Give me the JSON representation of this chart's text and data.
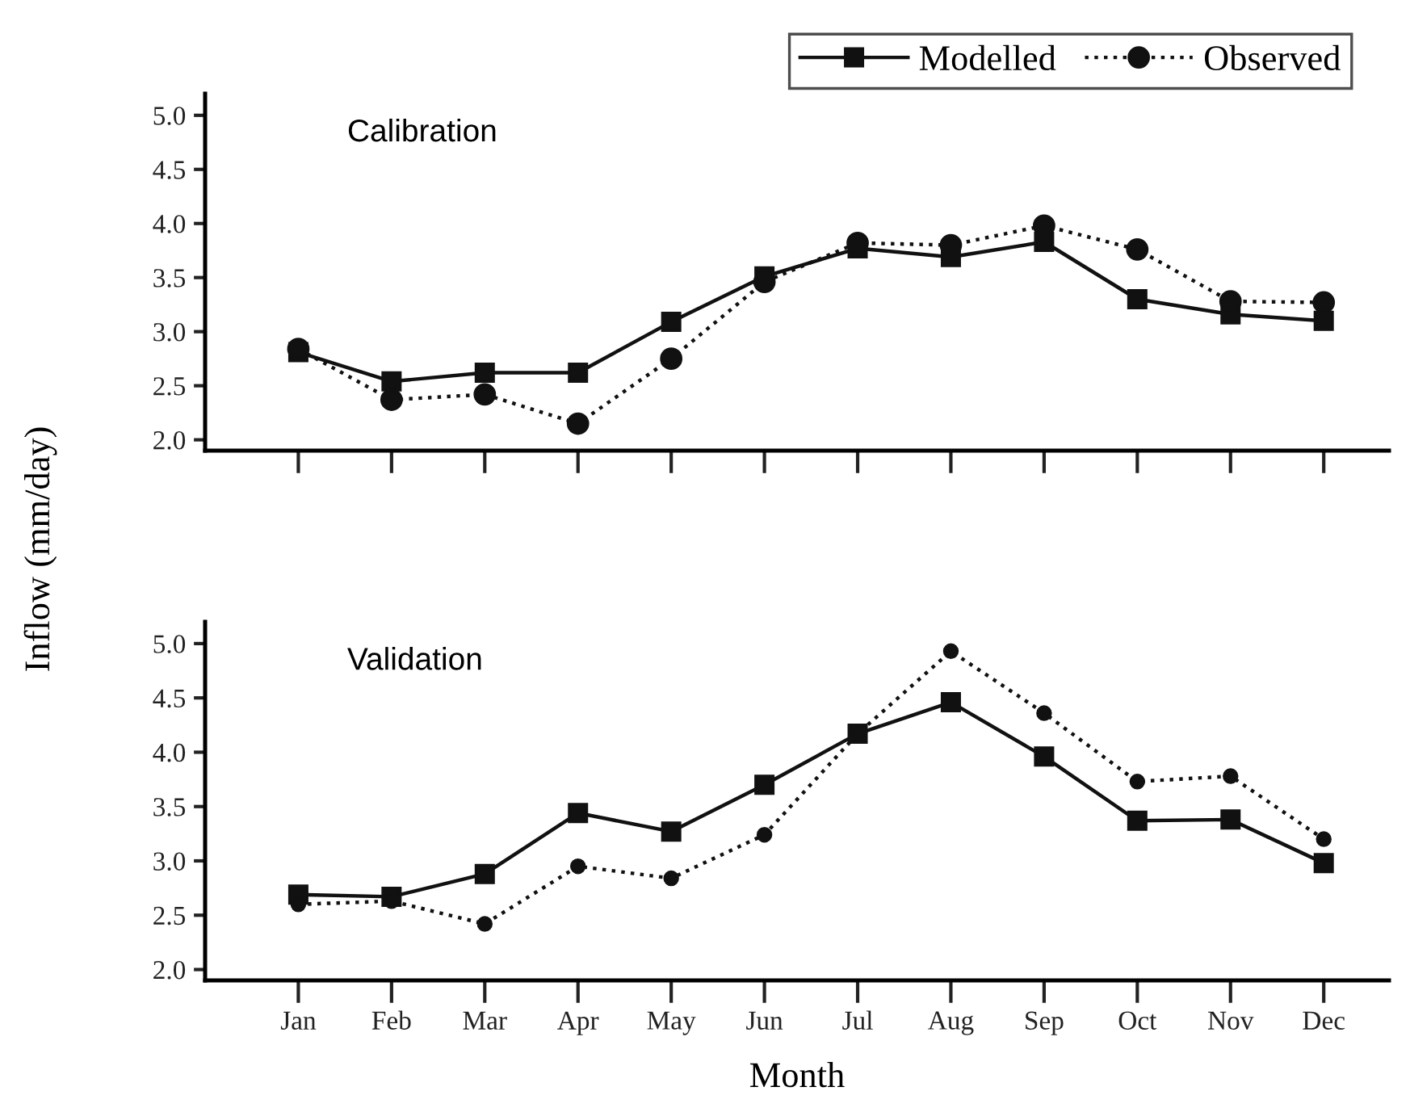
{
  "chart_data": [
    {
      "type": "line",
      "title": "Calibration",
      "ylabel": "Inflow (mm/day)",
      "categories": [
        null,
        null,
        null,
        null,
        null,
        null,
        null,
        null,
        null,
        null,
        null,
        null
      ],
      "ylim": [
        1.9,
        5.2
      ],
      "yticks": [
        {
          "value": 2,
          "label": "2.0"
        },
        2.5,
        {
          "value": 3,
          "label": "3.0"
        },
        3.5,
        {
          "value": 4,
          "label": "4.0"
        },
        4.5,
        {
          "value": 5,
          "label": "5.0"
        }
      ],
      "tick_labels": "y",
      "grid": false,
      "legend": "top right",
      "series": [
        {
          "name": "Modelled",
          "color": "#111111",
          "marker": "square",
          "line_style": "solid",
          "values": [
            2.81,
            2.54,
            2.62,
            2.62,
            3.09,
            3.51,
            3.77,
            3.69,
            3.83,
            3.3,
            3.16,
            3.1
          ]
        },
        {
          "name": "Observed",
          "color": "#111111",
          "marker": "circle",
          "line_style": "dotted",
          "values": [
            2.84,
            2.37,
            2.42,
            2.15,
            2.75,
            3.46,
            3.82,
            3.8,
            3.98,
            3.76,
            3.28,
            3.27
          ]
        }
      ]
    },
    {
      "type": "line",
      "title": "Validation",
      "xlabel": "Month",
      "categories": [
        "Jan",
        "Feb",
        "Mar",
        "Apr",
        "May",
        "Jun",
        "Jul",
        "Aug",
        "Sep",
        "Oct",
        "Nov",
        "Dec"
      ],
      "ylim": [
        1.9,
        5.2
      ],
      "yticks": [
        {
          "value": 2,
          "label": "2.0"
        },
        2.5,
        {
          "value": 3,
          "label": "3.0"
        },
        3.5,
        {
          "value": 4,
          "label": "4.0"
        },
        4.5,
        {
          "value": 5,
          "label": "5.0"
        }
      ],
      "grid": false,
      "series": [
        {
          "color": "#111111",
          "marker": "square",
          "line_style": "solid",
          "values": [
            2.69,
            2.67,
            2.88,
            3.44,
            3.27,
            3.7,
            4.17,
            4.46,
            3.96,
            3.37,
            3.38,
            2.98
          ]
        },
        {
          "color": "#111111",
          "marker": "circle",
          "line_style": "dotted",
          "values": [
            2.6,
            2.63,
            2.42,
            2.95,
            2.84,
            3.24,
            4.17,
            4.93,
            4.36,
            3.73,
            3.78,
            3.2
          ]
        }
      ]
    }
  ]
}
